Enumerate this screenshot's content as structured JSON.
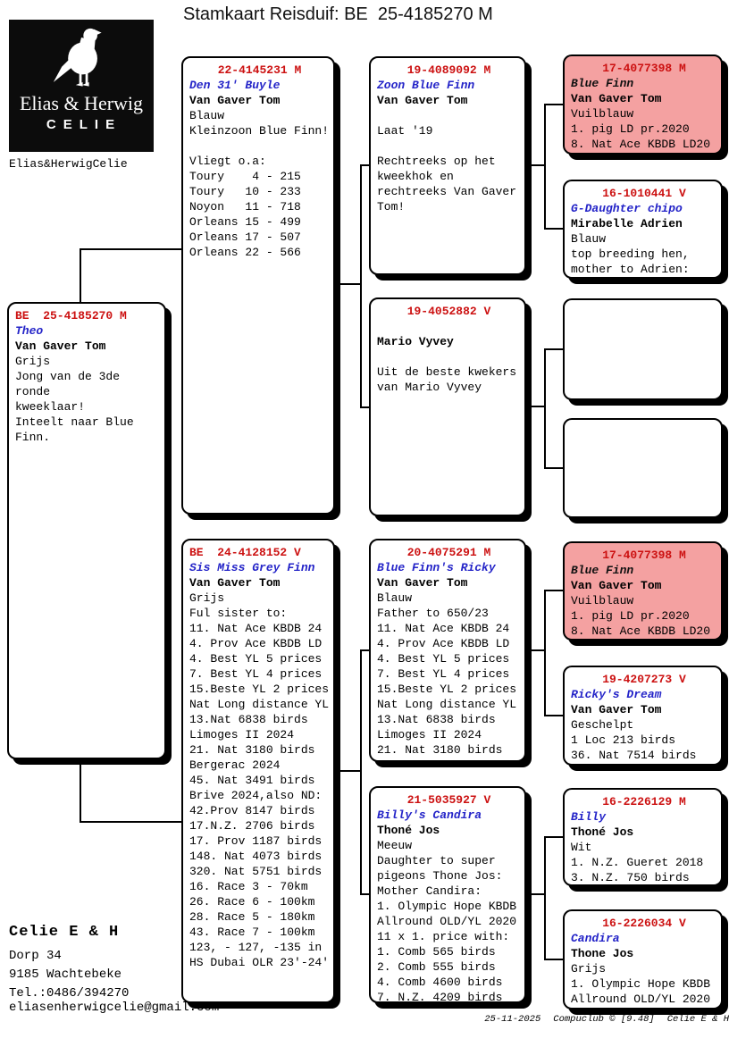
{
  "title": "Stamkaart Reisduif: BE  25-4185270 M",
  "logo": {
    "pigeon_icon": "pigeon-silhouette",
    "wordmark": "Elias & Herwig",
    "brand": "CELIE",
    "caption": "Elias&HerwigCelie"
  },
  "colors": {
    "id_red": "#cc1111",
    "name_blue": "#2424c8",
    "pink_bg": "#f4a1a1"
  },
  "contact": {
    "name": "Celie E & H",
    "address1": "Dorp 34",
    "address2": "9185  Wachtebeke",
    "phone": "Tel.:0486/394270",
    "email": "eliasenherwigcelie@gmail.com"
  },
  "footer": {
    "date": "25-11-2025",
    "software": "Compuclub © [9.48]",
    "owner": "Celie E & H"
  },
  "boxes": [
    {
      "key": "subject",
      "id": "BE  25-4185270 M",
      "id_align": "left",
      "name": "Theo",
      "fancier": "Van Gaver Tom",
      "lines": [
        "Grijs",
        "Jong van de 3de",
        "ronde",
        "kweeklaar!",
        "Inteelt naar Blue",
        "Finn."
      ]
    },
    {
      "key": "sire",
      "id": "22-4145231 M",
      "id_align": "center",
      "name": "Den 31' Buyle",
      "fancier": "Van Gaver Tom",
      "lines": [
        "Blauw",
        "Kleinzoon Blue Finn!",
        "",
        "Vliegt o.a:",
        "Toury    4 - 215",
        "Toury   10 - 233",
        "Noyon   11 - 718",
        "Orleans 15 - 499",
        "Orleans 17 - 507",
        "Orleans 22 - 566"
      ]
    },
    {
      "key": "sire_sire",
      "id": "19-4089092 M",
      "id_align": "center",
      "name": "Zoon Blue Finn",
      "fancier": "Van Gaver Tom",
      "lines": [
        "",
        "Laat '19",
        "",
        "Rechtreeks op het",
        "kweekhok en",
        "rechtreeks Van Gaver",
        "Tom!"
      ]
    },
    {
      "key": "sire_sire_sire",
      "id": "17-4077398 M",
      "id_align": "center",
      "pink": true,
      "name": "Blue Finn",
      "name_color": "#111111",
      "fancier": "Van Gaver Tom",
      "lines": [
        "Vuilblauw",
        "1. pig LD pr.2020",
        "8. Nat Ace KBDB LD20"
      ]
    },
    {
      "key": "sire_sire_dam",
      "id": "16-1010441 V",
      "id_align": "center",
      "name": "G-Daughter chipo",
      "fancier": "Mirabelle Adrien",
      "lines": [
        "Blauw",
        "top breeding hen,",
        "mother to Adrien:"
      ]
    },
    {
      "key": "sire_dam",
      "id": "19-4052882 V",
      "id_align": "center",
      "name": "",
      "fancier": "Mario Vyvey",
      "lines": [
        "",
        "Uit de beste kwekers",
        "van Mario Vyvey"
      ]
    },
    {
      "key": "sire_dam_sire",
      "id": "",
      "id_align": "center",
      "name": "",
      "fancier": "",
      "lines": [],
      "empty": true
    },
    {
      "key": "sire_dam_dam",
      "id": "",
      "id_align": "center",
      "name": "",
      "fancier": "",
      "lines": [],
      "empty": true
    },
    {
      "key": "dam",
      "id": "BE  24-4128152 V",
      "id_align": "left",
      "name": "Sis Miss Grey Finn",
      "fancier": "Van Gaver Tom",
      "lines": [
        "Grijs",
        "Ful sister to:",
        "11. Nat Ace KBDB 24",
        "4. Prov Ace KBDB LD",
        "4. Best YL 5 prices",
        "7. Best YL 4 prices",
        "15.Beste YL 2 prices",
        "Nat Long distance YL",
        "13.Nat 6838 birds",
        "Limoges II 2024",
        "21. Nat 3180 birds",
        "Bergerac 2024",
        "45. Nat 3491 birds",
        "Brive 2024,also ND:",
        "42.Prov 8147 birds",
        "17.N.Z. 2706 birds",
        "17. Prov 1187 birds",
        "148. Nat 4073 birds",
        "320. Nat 5751 birds",
        "16. Race 3 - 70km",
        "26. Race 6 - 100km",
        "28. Race 5 - 180km",
        "43. Race 7 - 100km",
        "123, - 127, -135 in",
        "HS Dubai OLR 23'-24'"
      ]
    },
    {
      "key": "dam_sire",
      "id": "20-4075291 M",
      "id_align": "center",
      "name": "Blue Finn's Ricky",
      "fancier": "Van Gaver Tom",
      "lines": [
        "Blauw",
        "Father to 650/23",
        "11. Nat Ace KBDB 24",
        "4. Prov Ace KBDB LD",
        "4. Best YL 5 prices",
        "7. Best YL 4 prices",
        "15.Beste YL 2 prices",
        "Nat Long distance YL",
        "13.Nat 6838 birds",
        "Limoges II 2024",
        "21. Nat 3180 birds"
      ]
    },
    {
      "key": "dam_sire_sire",
      "id": "17-4077398 M",
      "id_align": "center",
      "pink": true,
      "name": "Blue Finn",
      "name_color": "#111111",
      "fancier": "Van Gaver Tom",
      "lines": [
        "Vuilblauw",
        "1. pig LD pr.2020",
        "8. Nat Ace KBDB LD20"
      ]
    },
    {
      "key": "dam_sire_dam",
      "id": "19-4207273 V",
      "id_align": "center",
      "name": "Ricky's Dream",
      "fancier": "Van Gaver Tom",
      "lines": [
        "Geschelpt",
        "1 Loc 213 birds",
        "36. Nat 7514 birds"
      ]
    },
    {
      "key": "dam_dam",
      "id": "21-5035927 V",
      "id_align": "center",
      "name": "Billy's Candira",
      "fancier": "Thoné Jos",
      "lines": [
        "Meeuw",
        "Daughter to super",
        "pigeons Thone Jos:",
        "Mother Candira:",
        "1. Olympic Hope KBDB",
        "Allround OLD/YL 2020",
        "11 x 1. price with:",
        "1. Comb 565 birds",
        "2. Comb 555 birds",
        "4. Comb 4600 birds",
        "7. N.Z. 4209 birds"
      ]
    },
    {
      "key": "dam_dam_sire",
      "id": "16-2226129 M",
      "id_align": "center",
      "name": "Billy",
      "fancier": "Thoné Jos",
      "lines": [
        "Wit",
        "1. N.Z. Gueret 2018",
        "3. N.Z. 750 birds"
      ]
    },
    {
      "key": "dam_dam_dam",
      "id": "16-2226034 V",
      "id_align": "center",
      "name": "Candira",
      "fancier": "Thone Jos",
      "lines": [
        "Grijs",
        "1. Olympic Hope KBDB",
        "Allround OLD/YL 2020"
      ]
    }
  ]
}
